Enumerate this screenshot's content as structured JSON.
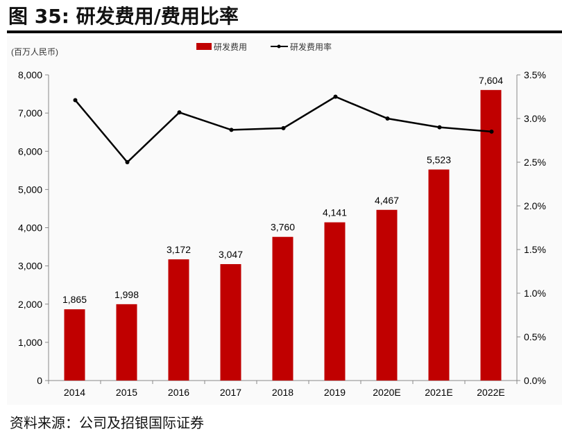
{
  "title": "图 35: 研发费用/费用比率",
  "source": "资料来源：公司及招银国际证券",
  "chart_data": {
    "type": "bar+line",
    "unit_label": "(百万人民币)",
    "categories": [
      "2014",
      "2015",
      "2016",
      "2017",
      "2018",
      "2019",
      "2020E",
      "2021E",
      "2022E"
    ],
    "series": [
      {
        "name": "研发费用",
        "type": "bar",
        "axis": "left",
        "color": "#c00000",
        "values": [
          1865,
          1998,
          3172,
          3047,
          3760,
          4141,
          4467,
          5523,
          7604
        ],
        "labels": [
          "1,865",
          "1,998",
          "3,172",
          "3,047",
          "3,760",
          "4,141",
          "4,467",
          "5,523",
          "7,604"
        ]
      },
      {
        "name": "研发费用率",
        "type": "line",
        "axis": "right",
        "color": "#000000",
        "values": [
          3.21,
          2.5,
          3.07,
          2.87,
          2.89,
          3.25,
          3.0,
          2.9,
          2.85
        ]
      }
    ],
    "left_axis": {
      "range": [
        0,
        8000
      ],
      "ticks": [
        "0",
        "1,000",
        "2,000",
        "3,000",
        "4,000",
        "5,000",
        "6,000",
        "7,000",
        "8,000"
      ]
    },
    "right_axis": {
      "range": [
        0,
        3.5
      ],
      "unit": "%",
      "ticks": [
        "0.0%",
        "0.5%",
        "1.0%",
        "1.5%",
        "2.0%",
        "2.5%",
        "3.0%",
        "3.5%"
      ]
    },
    "legend": "top-right",
    "grid": false
  }
}
